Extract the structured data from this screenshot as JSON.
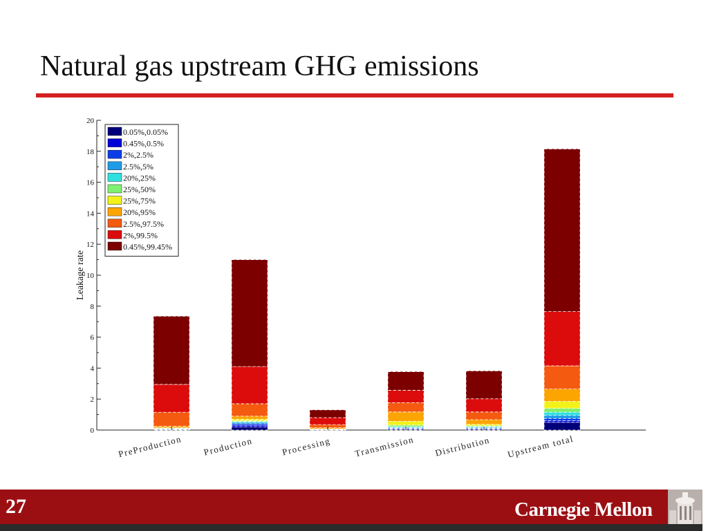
{
  "slide": {
    "title": "Natural gas upstream GHG emissions",
    "page_number": "27",
    "logo_text": "Carnegie Mellon"
  },
  "colors": {
    "accent_rule": "#d42020",
    "footer": "#9b0f13",
    "footer_stripe": "#2b2b2b"
  },
  "chart_data": {
    "type": "bar",
    "stacked": true,
    "ylabel": "Leakage rate",
    "ylim": [
      0,
      20
    ],
    "yticks": [
      0,
      2,
      4,
      6,
      8,
      10,
      12,
      14,
      16,
      18,
      20
    ],
    "categories": [
      "PreProduction",
      "Production",
      "Processing",
      "Transmission",
      "Distribution",
      "Upstream total"
    ],
    "legend_position": "top-left",
    "series": [
      {
        "name": "0.05%,0.05%",
        "color": "#00007a",
        "values": [
          0.02,
          0.2,
          0.01,
          0.05,
          0.05,
          0.5
        ]
      },
      {
        "name": "0.45%,0.5%",
        "color": "#0000d8",
        "values": [
          0.02,
          0.1,
          0.01,
          0.03,
          0.03,
          0.1
        ]
      },
      {
        "name": "2%,2.5%",
        "color": "#0a3ee8",
        "values": [
          0.02,
          0.1,
          0.01,
          0.04,
          0.04,
          0.15
        ]
      },
      {
        "name": "2.5%,5%",
        "color": "#1e9be6",
        "values": [
          0.02,
          0.1,
          0.01,
          0.05,
          0.05,
          0.2
        ]
      },
      {
        "name": "20%,25%",
        "color": "#2fe0e0",
        "values": [
          0.02,
          0.05,
          0.01,
          0.05,
          0.05,
          0.2
        ]
      },
      {
        "name": "25%,50%",
        "color": "#80f070",
        "values": [
          0.02,
          0.05,
          0.01,
          0.1,
          0.05,
          0.25
        ]
      },
      {
        "name": "25%,75%",
        "color": "#f2f21a",
        "values": [
          0.03,
          0.1,
          0.02,
          0.25,
          0.1,
          0.45
        ]
      },
      {
        "name": "20%,95%",
        "color": "#fca400",
        "values": [
          0.1,
          0.2,
          0.07,
          0.6,
          0.3,
          0.8
        ]
      },
      {
        "name": "2.5%,97.5%",
        "color": "#f45a10",
        "values": [
          0.9,
          0.8,
          0.2,
          0.6,
          0.5,
          1.5
        ]
      },
      {
        "name": "2%,99.5%",
        "color": "#dc0c0c",
        "values": [
          1.8,
          2.4,
          0.45,
          0.8,
          0.85,
          3.5
        ]
      },
      {
        "name": "0.45%,99.45%",
        "color": "#7c0000",
        "values": [
          4.4,
          6.9,
          0.5,
          1.2,
          1.8,
          10.5
        ]
      }
    ]
  }
}
